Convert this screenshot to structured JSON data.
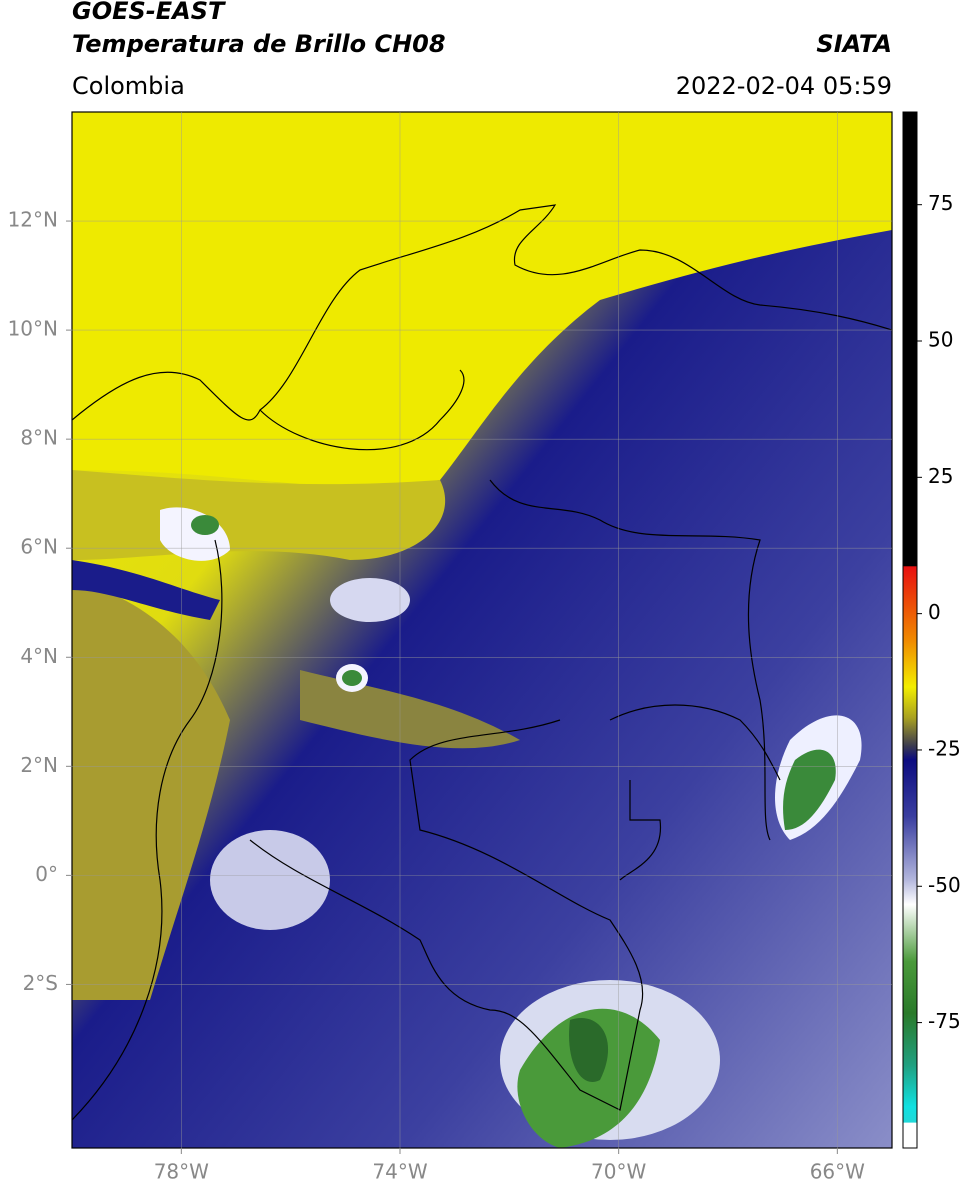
{
  "header": {
    "satellite": "GOES-EAST",
    "product": "Temperatura de Brillo CH08",
    "region": "Colombia",
    "source": "SIATA",
    "datetime": "2022-02-04 05:59"
  },
  "map": {
    "lonlim": [
      -80,
      -65
    ],
    "latlim": [
      -5,
      14
    ],
    "lon_ticks": [
      {
        "value": -78,
        "label": "78°W"
      },
      {
        "value": -74,
        "label": "74°W"
      },
      {
        "value": -70,
        "label": "70°W"
      },
      {
        "value": -66,
        "label": "66°W"
      }
    ],
    "lat_ticks": [
      {
        "value": 12,
        "label": "12°N"
      },
      {
        "value": 10,
        "label": "10°N"
      },
      {
        "value": 8,
        "label": "8°N"
      },
      {
        "value": 6,
        "label": "6°N"
      },
      {
        "value": 4,
        "label": "4°N"
      },
      {
        "value": 2,
        "label": "2°N"
      },
      {
        "value": 0,
        "label": "0°"
      },
      {
        "value": -2,
        "label": "2°S"
      }
    ],
    "grid": true
  },
  "colorbar": {
    "lim": [
      -98,
      92
    ],
    "ticks": [
      75,
      50,
      25,
      0,
      -25,
      -50,
      -75
    ]
  }
}
